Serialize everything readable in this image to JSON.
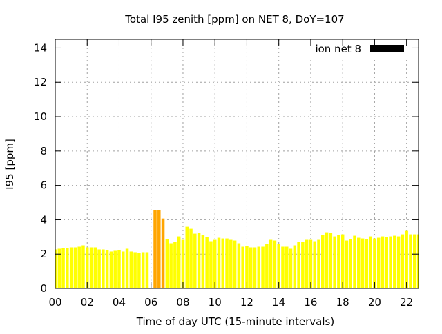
{
  "chart_data": {
    "type": "bar",
    "title": "Total I95 zenith [ppm] on NET 8, DoY=107",
    "xlabel": "Time of day UTC (15-minute intervals)",
    "ylabel": "I95 [ppm]",
    "xlim": [
      0,
      22.75
    ],
    "ylim": [
      0,
      14.5
    ],
    "grid": true,
    "legend_placement": "top-right",
    "legend": [
      {
        "name": "ion net 8",
        "color": "#000000"
      }
    ],
    "x_ticks": [
      0,
      2,
      4,
      6,
      8,
      10,
      12,
      14,
      16,
      18,
      20,
      22
    ],
    "x_tick_labels": [
      "00",
      "02",
      "04",
      "06",
      "08",
      "10",
      "12",
      "14",
      "16",
      "18",
      "20",
      "22"
    ],
    "y_ticks": [
      0,
      2,
      4,
      6,
      8,
      10,
      12,
      14
    ],
    "y_tick_labels": [
      "0",
      "2",
      "4",
      "6",
      "8",
      "10",
      "12",
      "14"
    ],
    "interval_hours": 0.25,
    "start_hour": 0,
    "colors": {
      "normal": "#ffff00",
      "highlight": "#ffa500"
    },
    "highlight_times": [
      "06:15",
      "06:30",
      "06:45"
    ],
    "values": [
      2.27,
      2.31,
      2.35,
      2.35,
      2.39,
      2.39,
      2.43,
      2.51,
      2.39,
      2.39,
      2.39,
      2.27,
      2.27,
      2.23,
      2.15,
      2.19,
      2.23,
      2.15,
      2.31,
      2.15,
      2.11,
      2.07,
      2.11,
      2.11,
      null,
      4.55,
      4.55,
      4.07,
      2.87,
      2.63,
      2.71,
      3.03,
      2.83,
      3.59,
      3.47,
      3.19,
      3.23,
      3.11,
      2.99,
      2.75,
      2.83,
      2.95,
      2.91,
      2.91,
      2.83,
      2.79,
      2.63,
      2.43,
      2.47,
      2.39,
      2.39,
      2.43,
      2.43,
      2.59,
      2.83,
      2.79,
      2.59,
      2.43,
      2.43,
      2.31,
      2.51,
      2.71,
      2.71,
      2.83,
      2.83,
      2.75,
      2.83,
      3.11,
      3.27,
      3.23,
      3.03,
      3.11,
      3.15,
      2.79,
      2.87,
      3.07,
      2.95,
      2.91,
      2.87,
      3.03,
      2.91,
      2.95,
      3.03,
      2.99,
      3.03,
      3.07,
      3.03,
      3.15,
      3.35,
      3.15,
      3.15,
      3.15
    ]
  }
}
